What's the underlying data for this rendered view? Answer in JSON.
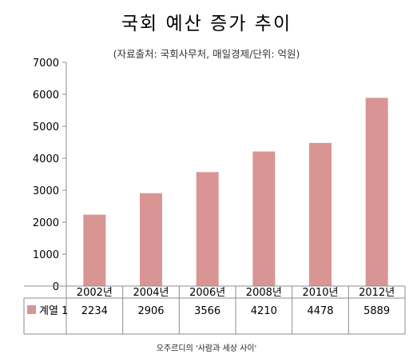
{
  "chart_data": {
    "type": "bar",
    "title": "국회 예산 증가 추이",
    "subtitle": "(자료출처: 국회사무처, 매일경제/단위: 억원)",
    "categories": [
      "2002년",
      "2004년",
      "2006년",
      "2008년",
      "2010년",
      "2012년"
    ],
    "series": [
      {
        "name": "계열 1",
        "values": [
          2234,
          2906,
          3566,
          4210,
          4478,
          5889
        ],
        "color": "#d99594"
      }
    ],
    "yticks": [
      0,
      1000,
      2000,
      3000,
      4000,
      5000,
      6000,
      7000
    ],
    "ylim": [
      0,
      7000
    ],
    "xlabel": "",
    "ylabel": "",
    "grid": false,
    "legend": "data-table-left",
    "data_table": true
  },
  "caption": "오주르디의 '사람과 세상 사이'"
}
